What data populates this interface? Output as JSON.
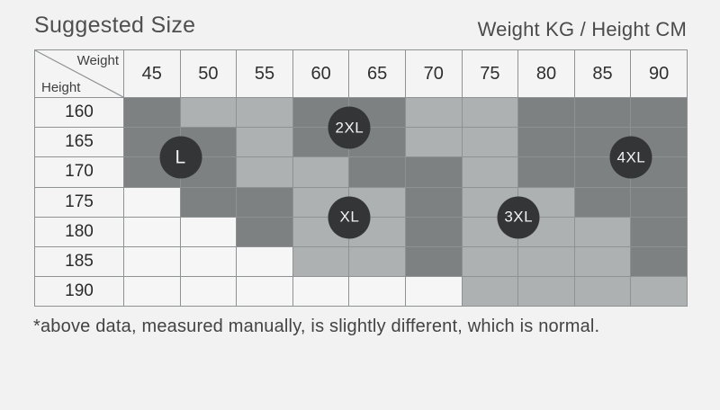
{
  "header": {
    "title": "Suggested Size",
    "unit_note": "Weight KG / Height CM"
  },
  "footnote": "*above data, measured manually, is slightly different, which is normal.",
  "chart_data": {
    "type": "heatmap",
    "title": "Suggested Size",
    "axis_note": "Weight KG / Height CM",
    "x_label": "Weight",
    "y_label": "Height",
    "weights_kg": [
      "45",
      "50",
      "55",
      "60",
      "65",
      "70",
      "75",
      "80",
      "85",
      "90"
    ],
    "heights_cm": [
      "160",
      "165",
      "170",
      "175",
      "180",
      "185",
      "190"
    ],
    "cell_shade_codes": [
      [
        2,
        1,
        1,
        2,
        2,
        1,
        1,
        2,
        2,
        2
      ],
      [
        2,
        2,
        1,
        2,
        2,
        1,
        1,
        2,
        2,
        2
      ],
      [
        2,
        2,
        1,
        1,
        2,
        2,
        1,
        2,
        2,
        2
      ],
      [
        0,
        2,
        2,
        1,
        1,
        2,
        1,
        1,
        2,
        2
      ],
      [
        0,
        0,
        2,
        1,
        1,
        2,
        1,
        1,
        1,
        2
      ],
      [
        0,
        0,
        0,
        1,
        1,
        2,
        1,
        1,
        1,
        2
      ],
      [
        0,
        0,
        0,
        0,
        0,
        0,
        1,
        1,
        1,
        1
      ]
    ],
    "shade_colors": {
      "0": "#f6f6f6",
      "1": "#aeb1b1",
      "2": "#7e8181"
    },
    "size_markers": [
      {
        "label": "L",
        "between_weights": [
          "45",
          "50"
        ],
        "between_heights": [
          "165",
          "170"
        ],
        "col_line": 1,
        "row_line": 2
      },
      {
        "label": "XL",
        "between_weights": [
          "60",
          "65"
        ],
        "between_heights": [
          "175",
          "180"
        ],
        "col_line": 4,
        "row_line": 4
      },
      {
        "label": "2XL",
        "between_weights": [
          "60",
          "65"
        ],
        "between_heights": [
          "160",
          "165"
        ],
        "col_line": 4,
        "row_line": 1
      },
      {
        "label": "3XL",
        "between_weights": [
          "75",
          "80"
        ],
        "between_heights": [
          "175",
          "180"
        ],
        "col_line": 7,
        "row_line": 4
      },
      {
        "label": "4XL",
        "between_weights": [
          "85",
          "90"
        ],
        "between_heights": [
          "165",
          "170"
        ],
        "col_line": 9,
        "row_line": 2
      }
    ],
    "marker_style": {
      "fill": "#333537",
      "text_color": "#f2f2f2"
    }
  }
}
